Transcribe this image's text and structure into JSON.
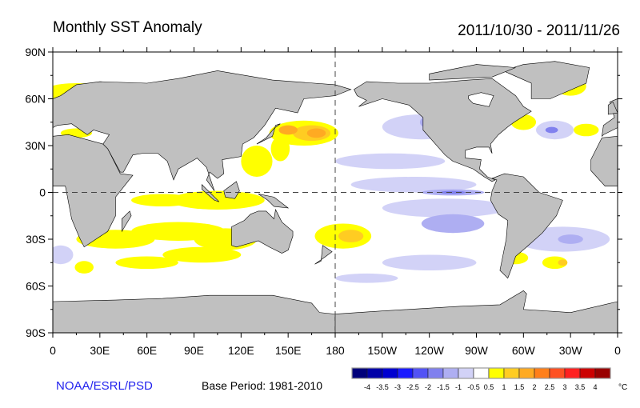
{
  "title": "Monthly SST Anomaly",
  "date_range": "2011/10/30 - 2011/11/26",
  "credit": "NOAA/ESRL/PSD",
  "base_period": "Base Period: 1981-2010",
  "map": {
    "projection": "cylindrical equidistant",
    "lon_range": [
      0,
      360
    ],
    "lat_range": [
      -90,
      90
    ],
    "land_color": "#c0c0c0",
    "ocean_color": "#ffffff",
    "lat_labels": [
      "90N",
      "60N",
      "30N",
      "0",
      "30S",
      "60S",
      "90S"
    ],
    "lon_labels": [
      "0",
      "30E",
      "60E",
      "90E",
      "120E",
      "150E",
      "180",
      "150W",
      "120W",
      "90W",
      "60W",
      "30W",
      "0"
    ],
    "dashed_lines": [
      "equator",
      "180"
    ]
  },
  "colorbar": {
    "unit": "°C",
    "labels": [
      "-4",
      "-3.5",
      "-3",
      "-2.5",
      "-2",
      "-1.5",
      "-1",
      "-0.5",
      "0.5",
      "1",
      "1.5",
      "2",
      "2.5",
      "3",
      "3.5",
      "4"
    ],
    "colors": [
      "#00007a",
      "#0000a8",
      "#0000d0",
      "#1a1aff",
      "#5252f5",
      "#8080ee",
      "#aeaef2",
      "#d2d2f7",
      "#ffffff",
      "#ffff00",
      "#ffcc22",
      "#ffaa22",
      "#ff7f1a",
      "#ff5022",
      "#ff2020",
      "#cc0000",
      "#990000"
    ]
  }
}
